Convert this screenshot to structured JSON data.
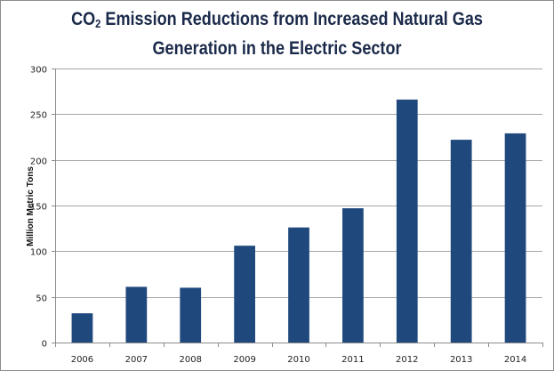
{
  "chart_data": {
    "type": "bar",
    "title": "CO2 Emission Reductions from Increased Natural Gas Generation in the Electric Sector",
    "title_parts": {
      "prefix": "CO",
      "subscript": "2",
      "line1_rest": " Emission Reductions from Increased Natural Gas",
      "line2": "Generation in the Electric Sector"
    },
    "xlabel": "",
    "ylabel": "Million Metric Tons",
    "categories": [
      "2006",
      "2007",
      "2008",
      "2009",
      "2010",
      "2011",
      "2012",
      "2013",
      "2014"
    ],
    "values": [
      32,
      61,
      60,
      106,
      126,
      147,
      266,
      222,
      229
    ],
    "ylim": [
      0,
      300
    ],
    "yticks": [
      0,
      50,
      100,
      150,
      200,
      250,
      300
    ],
    "grid": true,
    "legend": "none",
    "colors": {
      "bar": "#1f497d",
      "grid": "#a6a6a6",
      "axis": "#8c8c8c",
      "title": "#1b2a4a"
    }
  }
}
